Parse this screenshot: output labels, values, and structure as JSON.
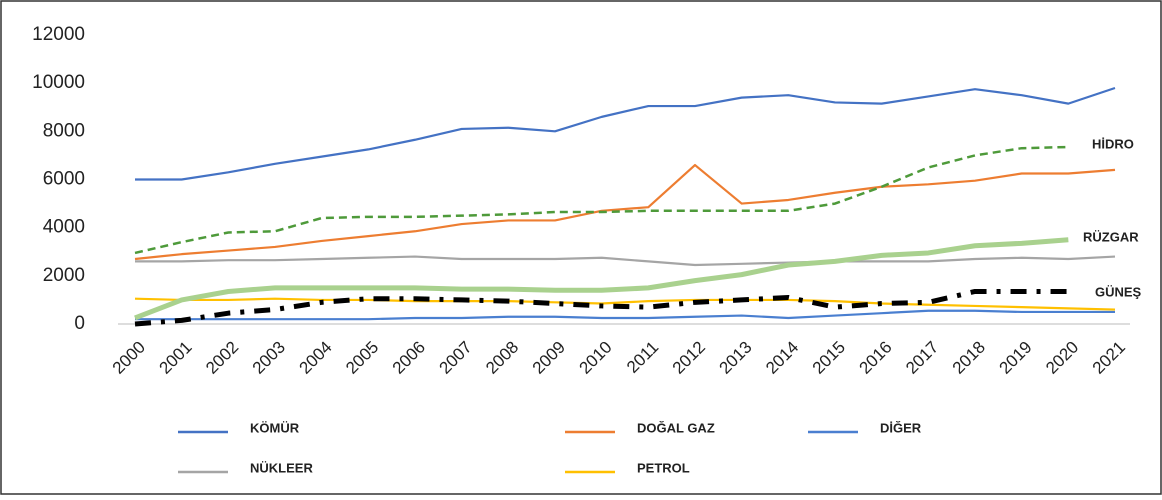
{
  "chart_data": {
    "type": "line",
    "x": [
      "2000",
      "2001",
      "2002",
      "2003",
      "2004",
      "2005",
      "2006",
      "2007",
      "2008",
      "2009",
      "2010",
      "2011",
      "2012",
      "2013",
      "2014",
      "2015",
      "2016",
      "2017",
      "2018",
      "2019",
      "2020",
      "2021"
    ],
    "ylim": [
      0,
      12000
    ],
    "yticks": [
      0,
      2000,
      4000,
      6000,
      8000,
      10000,
      12000
    ],
    "grid": false,
    "series": [
      {
        "name": "KÖMÜR",
        "color": "#4472c4",
        "style": "solid",
        "label_style": "legend",
        "values": [
          6000,
          6000,
          6300,
          6650,
          6950,
          7250,
          7650,
          8100,
          8150,
          8000,
          8600,
          9050,
          9050,
          9400,
          9500,
          9200,
          9150,
          9450,
          9750,
          9500,
          9150,
          9800
        ]
      },
      {
        "name": "DOĞAL GAZ",
        "color": "#ed7d31",
        "style": "solid",
        "label_style": "legend",
        "values": [
          2700,
          2900,
          3050,
          3200,
          3450,
          3650,
          3850,
          4150,
          4300,
          4300,
          4700,
          4850,
          6600,
          5000,
          5150,
          5450,
          5700,
          5800,
          5950,
          6250,
          6250,
          6400
        ]
      },
      {
        "name": "DİĞER",
        "color": "#4a7fd0",
        "style": "solid",
        "label_style": "legend",
        "values": [
          200,
          200,
          200,
          200,
          200,
          200,
          250,
          250,
          300,
          300,
          250,
          250,
          300,
          350,
          250,
          350,
          450,
          550,
          550,
          500,
          500,
          500
        ]
      },
      {
        "name": "NÜKLEER",
        "color": "#a5a5a5",
        "style": "solid",
        "label_style": "legend",
        "values": [
          2600,
          2600,
          2650,
          2650,
          2700,
          2750,
          2800,
          2700,
          2700,
          2700,
          2750,
          2600,
          2450,
          2500,
          2550,
          2600,
          2600,
          2600,
          2700,
          2750,
          2700,
          2800
        ]
      },
      {
        "name": "PETROL",
        "color": "#ffc000",
        "style": "solid",
        "label_style": "legend",
        "values": [
          1050,
          1000,
          1000,
          1050,
          1000,
          1000,
          950,
          950,
          950,
          900,
          850,
          950,
          1000,
          1000,
          1000,
          950,
          850,
          800,
          750,
          700,
          650,
          600
        ]
      },
      {
        "name": "HİDRO",
        "color": "#4e9a3a",
        "style": "dashed",
        "label_style": "inline",
        "values": [
          2950,
          3400,
          3800,
          3850,
          4400,
          4450,
          4450,
          4500,
          4550,
          4650,
          4650,
          4700,
          4700,
          4700,
          4700,
          5000,
          5700,
          6500,
          7000,
          7300,
          7350,
          null
        ]
      },
      {
        "name": "RÜZGAR",
        "color": "#a9d18e",
        "style": "thick",
        "label_style": "inline",
        "values": [
          250,
          1000,
          1350,
          1500,
          1500,
          1500,
          1500,
          1450,
          1450,
          1400,
          1400,
          1500,
          1800,
          2050,
          2450,
          2600,
          2850,
          2950,
          3250,
          3350,
          3500,
          null
        ]
      },
      {
        "name": "GÜNEŞ",
        "color": "#000000",
        "style": "dashdot",
        "label_style": "inline",
        "values": [
          0,
          150,
          450,
          600,
          900,
          1050,
          1050,
          1000,
          950,
          850,
          750,
          700,
          900,
          1000,
          1100,
          700,
          850,
          900,
          1350,
          1350,
          1350,
          null
        ]
      }
    ]
  }
}
